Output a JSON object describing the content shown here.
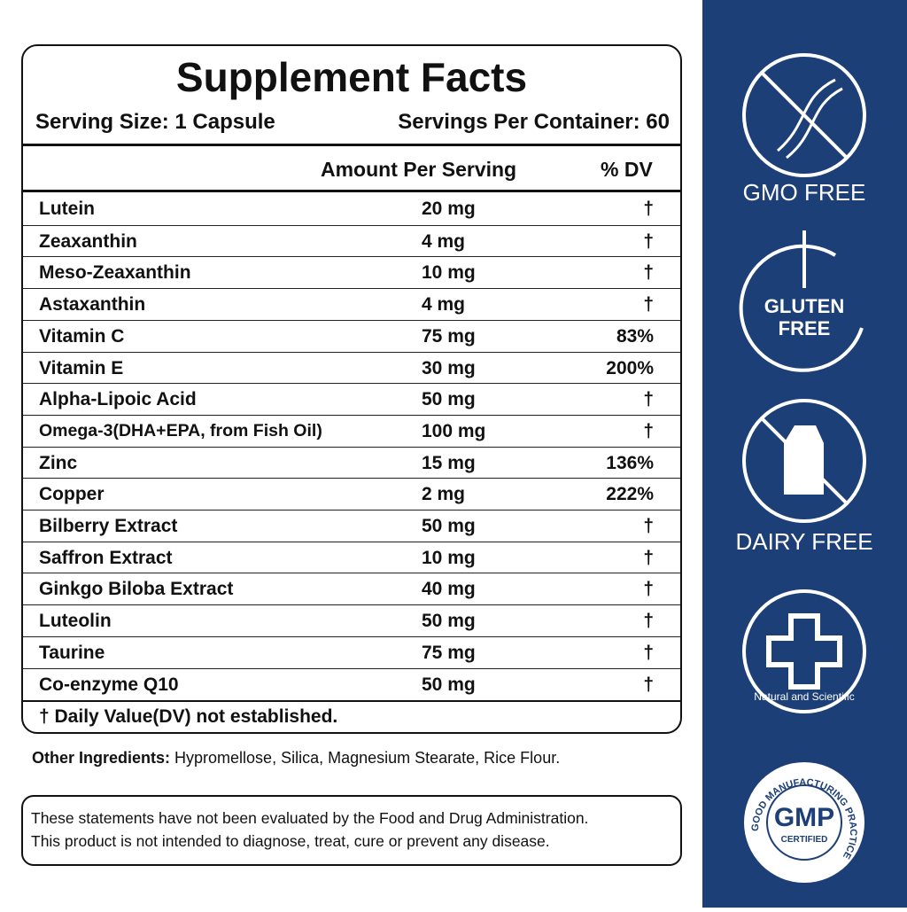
{
  "facts": {
    "title": "Supplement Facts",
    "serving_size": "Serving Size: 1 Capsule",
    "servings_per_container": "Servings Per Container: 60",
    "header": {
      "amount": "Amount Per Serving",
      "dv": "% DV"
    },
    "rows": [
      [
        "Lutein",
        "20 mg",
        "†"
      ],
      [
        "Zeaxanthin",
        "4  mg",
        "†"
      ],
      [
        "Meso-Zeaxanthin",
        "10 mg",
        "†"
      ],
      [
        "Astaxanthin",
        "4 mg",
        "†"
      ],
      [
        "Vitamin C",
        "75 mg",
        "83%"
      ],
      [
        "Vitamin E",
        "30 mg",
        "200%"
      ],
      [
        "Alpha-Lipoic Acid",
        "50 mg",
        "†"
      ],
      [
        "Omega-3(DHA+EPA, from Fish Oil)",
        "100 mg",
        "†"
      ],
      [
        "Zinc",
        "15 mg",
        "136%"
      ],
      [
        "Copper",
        "2 mg",
        "222%"
      ],
      [
        "Bilberry Extract",
        "50 mg",
        "†"
      ],
      [
        "Saffron Extract",
        "10 mg",
        "†"
      ],
      [
        "Ginkgo Biloba Extract",
        "40 mg",
        "†"
      ],
      [
        "Luteolin",
        "50 mg",
        "†"
      ],
      [
        "Taurine",
        "75 mg",
        "†"
      ],
      [
        "Co-enzyme Q10",
        "50 mg",
        "†"
      ]
    ],
    "footnote": "† Daily Value(DV) not established."
  },
  "other_ingredients": {
    "label": "Other Ingredients:",
    "text": "Hypromellose, Silica, Magnesium Stearate, Rice Flour."
  },
  "disclaimer": [
    "These statements have not been evaluated by the Food and Drug Administration.",
    "This product is not intended to diagnose, treat, cure or prevent any disease."
  ],
  "badges": {
    "gmo": "GMO FREE",
    "gluten": [
      "GLUTEN",
      "FREE"
    ],
    "dairy": "DAIRY FREE",
    "natural": "Natural and Scientific",
    "gmp": {
      "ring": "GOOD MANUFACTURING PRACTICE",
      "main": "GMP",
      "sub": "CERTIFIED"
    }
  }
}
